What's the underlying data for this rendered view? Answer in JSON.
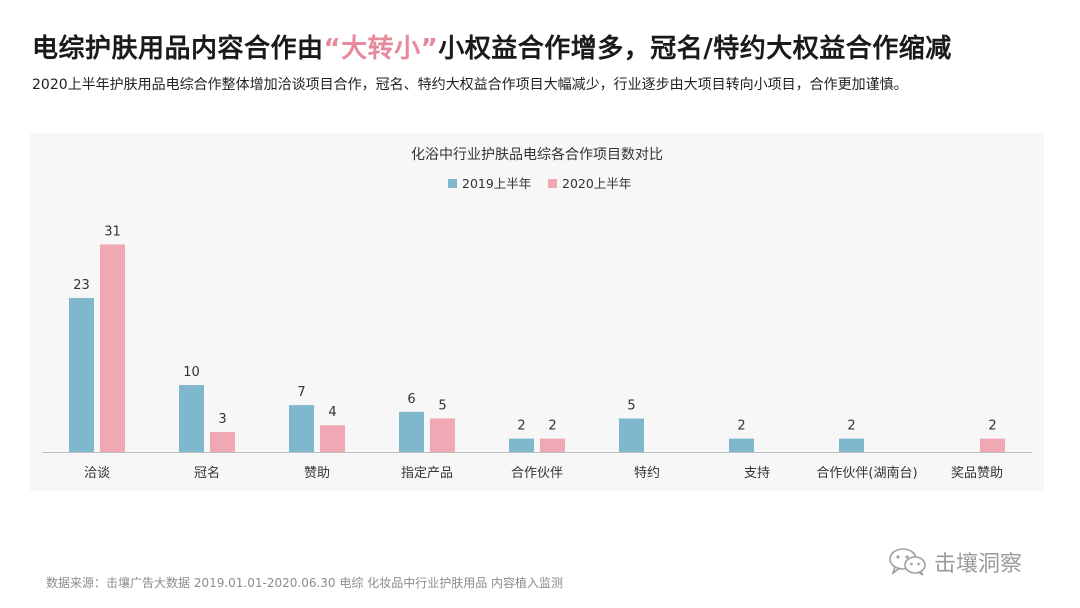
{
  "header": {
    "title_pre": "电综护肤用品内容合作由",
    "title_highlight": "“大转小”",
    "title_post": "小权益合作增多，冠名/特约大权益合作缩减",
    "subtitle": "2020上半年护肤用品电综合作整体增加洽谈项目合作，冠名、特约大权益合作项目大幅减少，行业逐步由大项目转向小项目，合作更加谨慎。"
  },
  "colors": {
    "series_2019": "#7fb7cd",
    "series_2020": "#f0a9b4",
    "highlight": "#e8899b",
    "panel_bg": "#f7f7f7",
    "axis": "#bfbfbf"
  },
  "chart_data": {
    "type": "bar",
    "title": "化浴中行业护肤品电综各合作项目数对比",
    "categories": [
      "洽谈",
      "冠名",
      "赞助",
      "指定产品",
      "合作伙伴",
      "特约",
      "支持",
      "合作伙伴(湖南台)",
      "奖品赞助"
    ],
    "series": [
      {
        "name": "2019上半年",
        "values": [
          23,
          10,
          7,
          6,
          2,
          5,
          2,
          2,
          null
        ]
      },
      {
        "name": "2020上半年",
        "values": [
          31,
          3,
          4,
          5,
          2,
          null,
          null,
          null,
          2
        ]
      }
    ],
    "ylim": [
      0,
      33
    ],
    "legend_position": "top-center",
    "grid": false,
    "data_labels": true
  },
  "footer": {
    "source": "数据来源：击壤广告大数据 2019.01.01-2020.06.30 电综 化妆品中行业护肤用品 内容植入监测",
    "watermark": "击壤洞察",
    "watermark_icon": "wechat-icon"
  }
}
